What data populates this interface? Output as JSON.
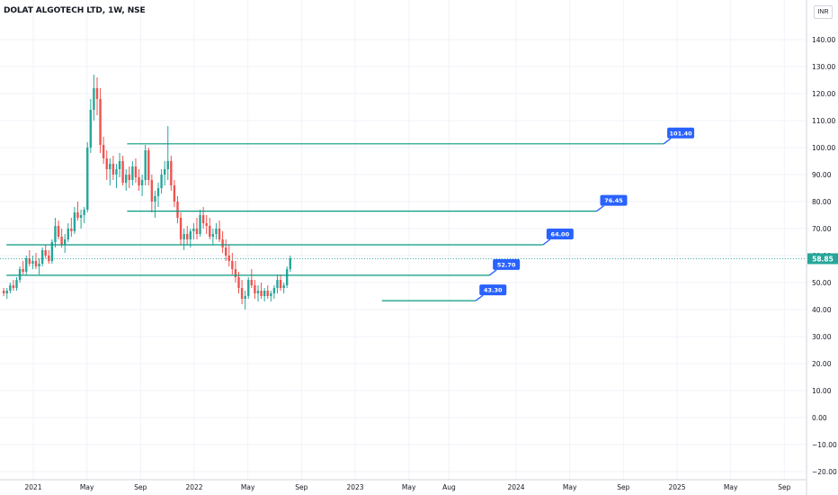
{
  "header": {
    "title": "DOLAT ALGOTECH LTD, 1W, NSE",
    "currency": "INR"
  },
  "colors": {
    "up": "#26a69a",
    "down": "#ef5350",
    "level": "#089981",
    "label_bg": "#2962ff",
    "last_price_bg": "#26a69a",
    "grid": "#f0f3fa"
  },
  "chart_data": {
    "type": "candlestick",
    "ylim": [
      -20,
      150
    ],
    "y_ticks": [
      "140.00",
      "130.00",
      "120.00",
      "110.00",
      "100.00",
      "90.00",
      "80.00",
      "70.00",
      "60.00",
      "50.00",
      "40.00",
      "30.00",
      "20.00",
      "10.00",
      "0.00",
      "−10.00",
      "−20.00"
    ],
    "x_ticks": [
      "2021",
      "May",
      "Sep",
      "2022",
      "May",
      "Sep",
      "2023",
      "May",
      "Aug",
      "2024",
      "May",
      "Sep",
      "2025",
      "May",
      "Sep"
    ],
    "last_price": "58.85",
    "levels": [
      {
        "label": "101.40",
        "value": 101.4,
        "start": "2021-08",
        "end": "2024-12"
      },
      {
        "label": "76.45",
        "value": 76.45,
        "start": "2021-08",
        "end": "2024-07"
      },
      {
        "label": "64.00",
        "value": 64.0,
        "start": "2020-11",
        "end": "2024-03"
      },
      {
        "label": "52.70",
        "value": 52.7,
        "start": "2020-11",
        "end": "2023-11"
      },
      {
        "label": "43.30",
        "value": 43.3,
        "start": "2023-03",
        "end": "2023-10"
      }
    ],
    "ohlc_weekly_sample": [
      [
        47,
        48,
        45,
        46
      ],
      [
        46,
        48,
        44,
        47
      ],
      [
        47,
        50,
        46,
        49
      ],
      [
        49,
        51,
        47,
        48
      ],
      [
        48,
        52,
        47,
        51
      ],
      [
        51,
        56,
        50,
        55
      ],
      [
        55,
        58,
        53,
        54
      ],
      [
        54,
        60,
        53,
        59
      ],
      [
        59,
        62,
        56,
        57
      ],
      [
        57,
        60,
        55,
        58
      ],
      [
        58,
        61,
        55,
        56
      ],
      [
        56,
        59,
        53,
        57
      ],
      [
        57,
        63,
        56,
        62
      ],
      [
        62,
        64,
        59,
        60
      ],
      [
        60,
        62,
        57,
        58
      ],
      [
        58,
        66,
        57,
        65
      ],
      [
        65,
        74,
        63,
        71
      ],
      [
        71,
        73,
        66,
        67
      ],
      [
        67,
        70,
        63,
        64
      ],
      [
        64,
        68,
        61,
        66
      ],
      [
        66,
        72,
        65,
        70
      ],
      [
        70,
        74,
        67,
        69
      ],
      [
        69,
        78,
        68,
        76
      ],
      [
        76,
        80,
        73,
        74
      ],
      [
        74,
        77,
        70,
        75
      ],
      [
        75,
        78,
        72,
        77
      ],
      [
        77,
        102,
        76,
        100
      ],
      [
        100,
        118,
        98,
        114
      ],
      [
        114,
        127,
        110,
        122
      ],
      [
        122,
        126,
        112,
        118
      ],
      [
        118,
        122,
        98,
        101
      ],
      [
        101,
        104,
        94,
        96
      ],
      [
        96,
        99,
        88,
        92
      ],
      [
        92,
        96,
        86,
        94
      ],
      [
        94,
        97,
        88,
        90
      ],
      [
        90,
        94,
        85,
        92
      ],
      [
        92,
        98,
        89,
        95
      ],
      [
        95,
        97,
        86,
        87
      ],
      [
        87,
        92,
        84,
        90
      ],
      [
        90,
        93,
        85,
        88
      ],
      [
        88,
        95,
        86,
        93
      ],
      [
        93,
        96,
        87,
        89
      ],
      [
        89,
        92,
        84,
        86
      ],
      [
        86,
        90,
        82,
        88
      ],
      [
        88,
        101,
        86,
        99
      ],
      [
        99,
        100,
        86,
        88
      ],
      [
        88,
        90,
        76,
        80
      ],
      [
        80,
        84,
        74,
        82
      ],
      [
        82,
        87,
        78,
        85
      ],
      [
        85,
        92,
        83,
        90
      ],
      [
        90,
        95,
        86,
        92
      ],
      [
        92,
        108,
        88,
        95
      ],
      [
        95,
        97,
        84,
        86
      ],
      [
        86,
        88,
        78,
        80
      ],
      [
        80,
        82,
        72,
        74
      ],
      [
        74,
        76,
        64,
        66
      ],
      [
        66,
        70,
        62,
        68
      ],
      [
        68,
        71,
        64,
        66
      ],
      [
        66,
        70,
        63,
        69
      ],
      [
        69,
        72,
        66,
        70
      ],
      [
        70,
        74,
        66,
        68
      ],
      [
        68,
        77,
        67,
        75
      ],
      [
        75,
        78,
        70,
        72
      ],
      [
        72,
        75,
        68,
        71
      ],
      [
        71,
        74,
        66,
        67
      ],
      [
        67,
        70,
        64,
        68
      ],
      [
        68,
        72,
        66,
        70
      ],
      [
        70,
        73,
        65,
        66
      ],
      [
        66,
        69,
        61,
        63
      ],
      [
        63,
        66,
        58,
        60
      ],
      [
        60,
        64,
        56,
        58
      ],
      [
        58,
        61,
        53,
        55
      ],
      [
        55,
        58,
        50,
        52
      ],
      [
        52,
        54,
        46,
        48
      ],
      [
        48,
        51,
        42,
        44
      ],
      [
        44,
        47,
        40,
        45
      ],
      [
        45,
        52,
        44,
        51
      ],
      [
        51,
        55,
        48,
        49
      ],
      [
        49,
        51,
        44,
        46
      ],
      [
        46,
        49,
        43,
        47
      ],
      [
        47,
        50,
        44,
        45
      ],
      [
        45,
        48,
        43,
        47
      ],
      [
        47,
        49,
        44,
        45
      ],
      [
        45,
        47,
        43,
        46
      ],
      [
        46,
        49,
        44,
        48
      ],
      [
        48,
        53,
        46,
        51
      ],
      [
        51,
        53,
        47,
        48
      ],
      [
        48,
        50,
        46,
        49
      ],
      [
        49,
        56,
        48,
        55
      ],
      [
        55,
        60,
        54,
        59
      ]
    ]
  }
}
